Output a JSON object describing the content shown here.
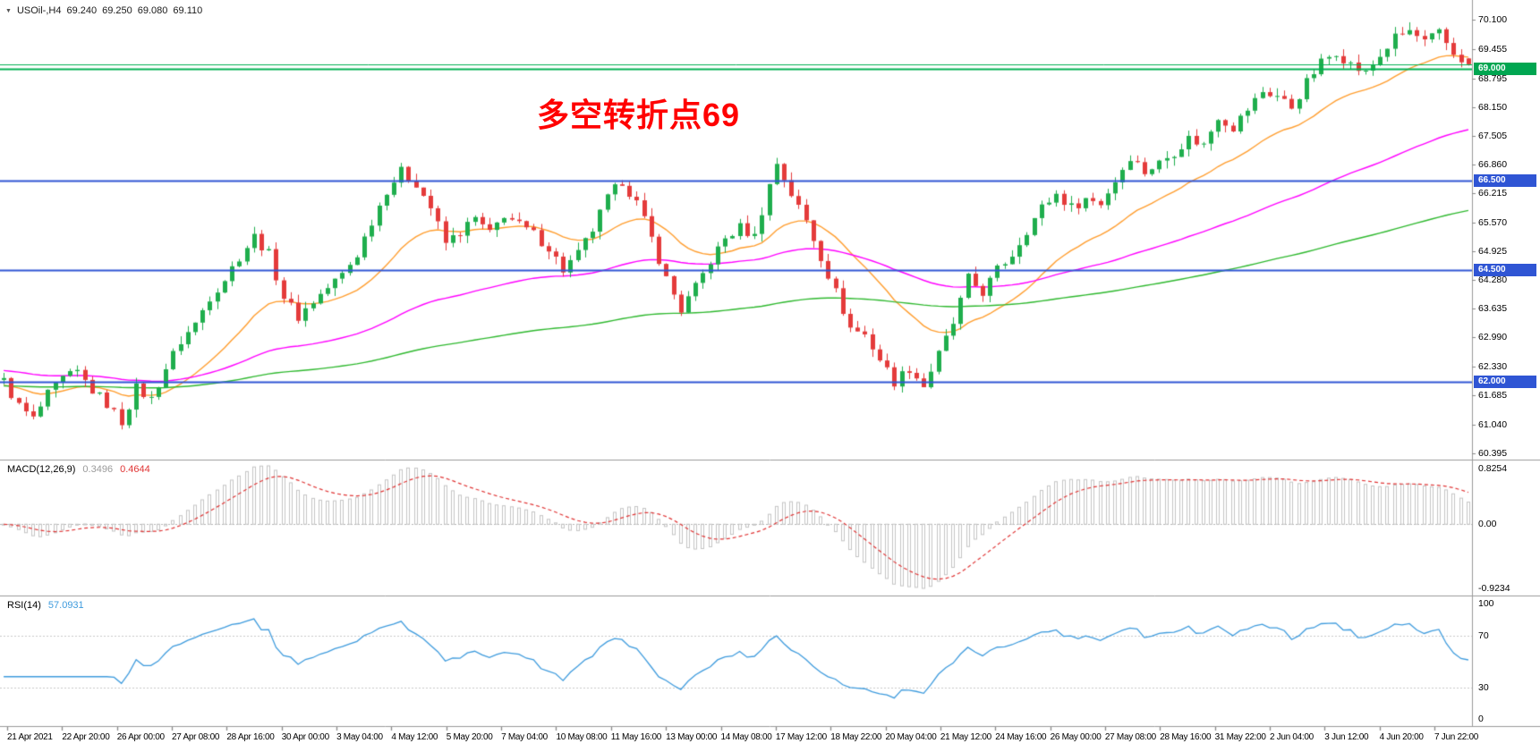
{
  "window": {
    "background": "#ffffff"
  },
  "colors": {
    "background": "#ffffff",
    "axis_text": "#000000",
    "separator": "#9a9a9a"
  },
  "symbol_bar": {
    "collapse_icon": "▼",
    "title": "USOil-,H4",
    "open": "69.240",
    "high": "69.250",
    "low": "69.080",
    "close": "69.110"
  },
  "annotation": {
    "text": "多空转折点69",
    "color": "#ff0000"
  },
  "chart_data": {
    "type": "candlestick",
    "symbol": "USOil-",
    "timeframe": "H4",
    "ylim": [
      60.25,
      70.55
    ],
    "grid": false,
    "price_axis": {
      "labels": [
        "70.100",
        "69.455",
        "68.795",
        "68.150",
        "67.505",
        "66.860",
        "66.215",
        "65.570",
        "64.925",
        "64.280",
        "63.635",
        "62.990",
        "62.330",
        "61.685",
        "61.040",
        "60.395"
      ]
    },
    "time_axis": {
      "labels": [
        "21 Apr 2021",
        "22 Apr 20:00",
        "26 Apr 00:00",
        "27 Apr 08:00",
        "28 Apr 16:00",
        "30 Apr 00:00",
        "3 May 04:00",
        "4 May 12:00",
        "5 May 20:00",
        "7 May 04:00",
        "10 May 08:00",
        "11 May 16:00",
        "13 May 00:00",
        "14 May 08:00",
        "17 May 12:00",
        "18 May 22:00",
        "20 May 04:00",
        "21 May 12:00",
        "24 May 16:00",
        "26 May 00:00",
        "27 May 08:00",
        "28 May 16:00",
        "31 May 22:00",
        "2 Jun 04:00",
        "3 Jun 12:00",
        "4 Jun 20:00",
        "7 Jun 22:00"
      ]
    },
    "candles": {
      "count": 200,
      "last": {
        "o": 69.24,
        "h": 69.25,
        "l": 69.08,
        "c": 69.11
      },
      "close_waypoints": [
        [
          0,
          62.0
        ],
        [
          2,
          61.45
        ],
        [
          4,
          61.15
        ],
        [
          6,
          61.7
        ],
        [
          8,
          62.05
        ],
        [
          10,
          62.2
        ],
        [
          12,
          61.8
        ],
        [
          14,
          61.5
        ],
        [
          16,
          61.1
        ],
        [
          18,
          61.85
        ],
        [
          20,
          61.6
        ],
        [
          22,
          62.3
        ],
        [
          24,
          62.9
        ],
        [
          26,
          63.3
        ],
        [
          28,
          63.9
        ],
        [
          30,
          64.3
        ],
        [
          32,
          64.8
        ],
        [
          34,
          65.25
        ],
        [
          36,
          64.85
        ],
        [
          38,
          63.9
        ],
        [
          40,
          63.45
        ],
        [
          42,
          63.8
        ],
        [
          44,
          64.1
        ],
        [
          46,
          64.4
        ],
        [
          48,
          64.85
        ],
        [
          50,
          65.6
        ],
        [
          52,
          66.3
        ],
        [
          54,
          66.7
        ],
        [
          56,
          66.45
        ],
        [
          58,
          65.9
        ],
        [
          60,
          65.1
        ],
        [
          62,
          65.35
        ],
        [
          64,
          65.65
        ],
        [
          66,
          65.3
        ],
        [
          68,
          65.75
        ],
        [
          70,
          65.5
        ],
        [
          72,
          65.3
        ],
        [
          74,
          65.0
        ],
        [
          76,
          64.5
        ],
        [
          78,
          64.85
        ],
        [
          80,
          65.4
        ],
        [
          82,
          66.1
        ],
        [
          84,
          66.5
        ],
        [
          86,
          66.0
        ],
        [
          88,
          65.2
        ],
        [
          90,
          64.3
        ],
        [
          92,
          63.6
        ],
        [
          94,
          64.1
        ],
        [
          96,
          64.7
        ],
        [
          98,
          65.2
        ],
        [
          100,
          65.45
        ],
        [
          102,
          65.25
        ],
        [
          104,
          66.4
        ],
        [
          105,
          66.9
        ],
        [
          107,
          66.2
        ],
        [
          109,
          65.6
        ],
        [
          111,
          64.8
        ],
        [
          113,
          64.0
        ],
        [
          115,
          63.2
        ],
        [
          117,
          63.05
        ],
        [
          119,
          62.5
        ],
        [
          121,
          62.0
        ],
        [
          123,
          62.3
        ],
        [
          125,
          61.9
        ],
        [
          127,
          62.6
        ],
        [
          129,
          63.3
        ],
        [
          131,
          64.3
        ],
        [
          133,
          64.0
        ],
        [
          135,
          64.5
        ],
        [
          137,
          64.85
        ],
        [
          139,
          65.4
        ],
        [
          141,
          65.9
        ],
        [
          143,
          66.2
        ],
        [
          145,
          65.9
        ],
        [
          147,
          66.1
        ],
        [
          149,
          66.0
        ],
        [
          151,
          66.5
        ],
        [
          153,
          67.05
        ],
        [
          155,
          66.7
        ],
        [
          157,
          66.9
        ],
        [
          159,
          67.15
        ],
        [
          161,
          67.45
        ],
        [
          163,
          67.3
        ],
        [
          165,
          67.95
        ],
        [
          167,
          67.7
        ],
        [
          169,
          68.1
        ],
        [
          171,
          68.5
        ],
        [
          173,
          68.4
        ],
        [
          175,
          68.15
        ],
        [
          177,
          68.7
        ],
        [
          179,
          69.15
        ],
        [
          181,
          69.4
        ],
        [
          183,
          69.1
        ],
        [
          185,
          68.9
        ],
        [
          187,
          69.3
        ],
        [
          189,
          69.7
        ],
        [
          191,
          69.85
        ],
        [
          193,
          69.6
        ],
        [
          195,
          69.8
        ],
        [
          197,
          69.35
        ],
        [
          199,
          69.11
        ]
      ]
    },
    "candle_up_color": "#1fae4d",
    "candle_down_color": "#e43b3b",
    "moving_averages": [
      {
        "name": "fast-ma-orange",
        "color": "#ff9d2e",
        "period": 20,
        "seed": 61.9
      },
      {
        "name": "medium-ma-magenta",
        "color": "#ff00ff",
        "period": 75,
        "seed": 62.25
      },
      {
        "name": "slow-ma-green",
        "color": "#2eb82e",
        "period": 190,
        "seed": 61.9
      }
    ],
    "levels": [
      {
        "price": 69.11,
        "color": "#00b050",
        "width": 1,
        "label": null,
        "tag_color": null
      },
      {
        "price": 69.0,
        "color": "#00b050",
        "width": 2,
        "label": "69.000",
        "tag_color": "#00a651"
      },
      {
        "price": 66.5,
        "color": "#2f55d4",
        "width": 2,
        "label": "66.500",
        "tag_color": "#2f55d4"
      },
      {
        "price": 64.5,
        "color": "#2f55d4",
        "width": 2,
        "label": "64.500",
        "tag_color": "#2f55d4"
      },
      {
        "price": 62.0,
        "color": "#2f55d4",
        "width": 2,
        "label": "62.000",
        "tag_color": "#2f55d4"
      }
    ],
    "macd": {
      "label": "MACD(12,26,9)",
      "value_main": "0.3496",
      "value_signal": "0.4644",
      "fast": 12,
      "slow": 26,
      "signal": 9,
      "scale_labels": [
        "0.8254",
        "0.00",
        "-0.9234"
      ],
      "hist_color": "#c4c4c4",
      "signal_color": "#e03535"
    },
    "rsi": {
      "label": "RSI(14)",
      "value": "57.0931",
      "period": 14,
      "scale_labels": [
        "100",
        "70",
        "30",
        "0"
      ],
      "levels": [
        70,
        30
      ],
      "color": "#3e9bdd"
    }
  }
}
